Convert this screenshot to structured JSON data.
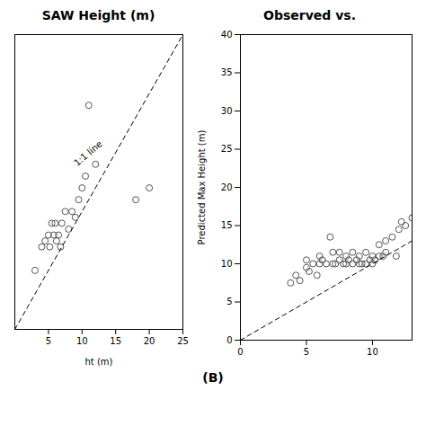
{
  "chart_data": [
    {
      "type": "scatter",
      "title": "SAW Height (m)",
      "x_label": "ht (m)",
      "xlim": [
        0,
        25
      ],
      "ylim": [
        10,
        35
      ],
      "xticks": [
        5,
        10,
        15,
        20,
        25
      ],
      "yticks": [],
      "tick_labels": "x",
      "series": [
        {
          "type": "scatter",
          "marker": "open_circle",
          "color": "#555555",
          "x": [
            3,
            4,
            4.5,
            5,
            5.2,
            5.5,
            5.8,
            6,
            6.2,
            6.5,
            6.8,
            7,
            7.5,
            8,
            8.5,
            9,
            9.5,
            10,
            10.5,
            11,
            12,
            18,
            20
          ],
          "values": [
            15,
            17,
            17.5,
            18,
            17,
            19,
            18,
            19,
            17.5,
            18,
            17,
            19,
            20,
            18.5,
            20,
            19.5,
            21,
            22,
            23,
            29,
            24,
            21,
            22
          ]
        },
        {
          "type": "line",
          "line_style": "dashed",
          "color": "#000000",
          "x": [
            0,
            25
          ],
          "values": [
            10,
            35
          ]
        }
      ],
      "annotations": [
        {
          "text": "1:1 line",
          "x": 9,
          "y": 24
        }
      ]
    },
    {
      "type": "scatter",
      "title": "Observed vs.",
      "y_label": "Predicted Max Height (m)",
      "xlim": [
        0,
        13
      ],
      "ylim": [
        0,
        40
      ],
      "xticks": [
        0,
        5,
        10
      ],
      "yticks": [
        0,
        5,
        10,
        15,
        20,
        25,
        30,
        35,
        40
      ],
      "series": [
        {
          "type": "scatter",
          "marker": "open_circle",
          "color": "#555555",
          "x": [
            3.8,
            4.2,
            4.5,
            5.0,
            5.0,
            5.2,
            5.5,
            5.8,
            6.0,
            6.0,
            6.2,
            6.5,
            6.8,
            7.0,
            7.0,
            7.2,
            7.5,
            7.5,
            7.8,
            8.0,
            8.0,
            8.2,
            8.5,
            8.5,
            8.8,
            9.0,
            9.0,
            9.2,
            9.5,
            9.5,
            9.8,
            10.0,
            10.0,
            10.2,
            10.5,
            10.5,
            10.8,
            11.0,
            11.0,
            11.5,
            11.8,
            12.0,
            12.2,
            12.5,
            13.0
          ],
          "values": [
            7.5,
            8.5,
            7.8,
            9.5,
            10.5,
            9.0,
            10.0,
            8.5,
            10.0,
            11.0,
            10.5,
            10.0,
            13.5,
            10.0,
            11.5,
            10.0,
            10.5,
            11.5,
            10.0,
            10.0,
            11.0,
            10.5,
            10.0,
            11.5,
            10.5,
            10.0,
            11.0,
            10.0,
            10.0,
            11.5,
            10.5,
            10.0,
            11.0,
            10.5,
            11.0,
            12.5,
            11.0,
            11.5,
            13.0,
            13.5,
            11.0,
            14.5,
            15.5,
            15.0,
            16.0
          ]
        },
        {
          "type": "line",
          "line_style": "dashed",
          "color": "#000000",
          "x": [
            0,
            13
          ],
          "values": [
            0,
            13
          ]
        }
      ]
    }
  ],
  "caption": "(B)"
}
